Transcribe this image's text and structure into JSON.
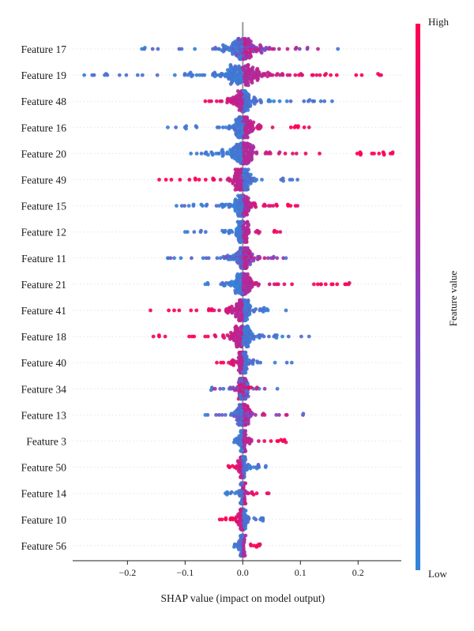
{
  "chart_data": {
    "type": "scatter",
    "subtype": "shap-beeswarm",
    "xlabel": "SHAP value (impact on model output)",
    "ylabel": "",
    "xlim": [
      -0.295,
      0.275
    ],
    "xticks": [
      -0.2,
      -0.1,
      0.0,
      0.1,
      0.2
    ],
    "xtick_labels": [
      "−0.2",
      "−0.1",
      "0.0",
      "0.1",
      "0.2"
    ],
    "grid": false,
    "colorbar": {
      "title": "Feature value",
      "high_label": "High",
      "low_label": "Low",
      "high_color": "#ff0052",
      "low_color": "#2f86d8"
    },
    "features": [
      {
        "name": "Feature 17",
        "min": -0.175,
        "max": 0.165,
        "low_side": "both",
        "high_mag": "small"
      },
      {
        "name": "Feature 19",
        "min": -0.275,
        "max": 0.24,
        "low_side": "neg",
        "high_mag": "large"
      },
      {
        "name": "Feature 48",
        "min": -0.065,
        "max": 0.155,
        "low_side": "pos",
        "high_mag": "neg"
      },
      {
        "name": "Feature 16",
        "min": -0.13,
        "max": 0.115,
        "low_side": "neg",
        "high_mag": "small"
      },
      {
        "name": "Feature 20",
        "min": -0.09,
        "max": 0.26,
        "low_side": "neg",
        "high_mag": "large"
      },
      {
        "name": "Feature 49",
        "min": -0.145,
        "max": 0.095,
        "low_side": "pos",
        "high_mag": "neg"
      },
      {
        "name": "Feature 15",
        "min": -0.115,
        "max": 0.095,
        "low_side": "neg",
        "high_mag": "small"
      },
      {
        "name": "Feature 12",
        "min": -0.1,
        "max": 0.065,
        "low_side": "neg",
        "high_mag": "medium"
      },
      {
        "name": "Feature 11",
        "min": -0.13,
        "max": 0.075,
        "low_side": "both",
        "high_mag": "small"
      },
      {
        "name": "Feature 21",
        "min": -0.065,
        "max": 0.185,
        "low_side": "neg",
        "high_mag": "large"
      },
      {
        "name": "Feature 41",
        "min": -0.16,
        "max": 0.075,
        "low_side": "pos",
        "high_mag": "neg"
      },
      {
        "name": "Feature 18",
        "min": -0.155,
        "max": 0.115,
        "low_side": "pos",
        "high_mag": "neg"
      },
      {
        "name": "Feature 40",
        "min": -0.045,
        "max": 0.085,
        "low_side": "pos",
        "high_mag": "neg"
      },
      {
        "name": "Feature 34",
        "min": -0.055,
        "max": 0.06,
        "low_side": "pos",
        "high_mag": "mixed"
      },
      {
        "name": "Feature 13",
        "min": -0.065,
        "max": 0.105,
        "low_side": "both",
        "high_mag": "small"
      },
      {
        "name": "Feature 3",
        "min": -0.015,
        "max": 0.075,
        "low_side": "neg",
        "high_mag": "medium"
      },
      {
        "name": "Feature 50",
        "min": -0.025,
        "max": 0.04,
        "low_side": "pos",
        "high_mag": "neg"
      },
      {
        "name": "Feature 14",
        "min": -0.03,
        "max": 0.045,
        "low_side": "neg",
        "high_mag": "medium"
      },
      {
        "name": "Feature 10",
        "min": -0.04,
        "max": 0.035,
        "low_side": "pos",
        "high_mag": "neg"
      },
      {
        "name": "Feature 56",
        "min": -0.015,
        "max": 0.03,
        "low_side": "neg",
        "high_mag": "medium"
      }
    ]
  }
}
